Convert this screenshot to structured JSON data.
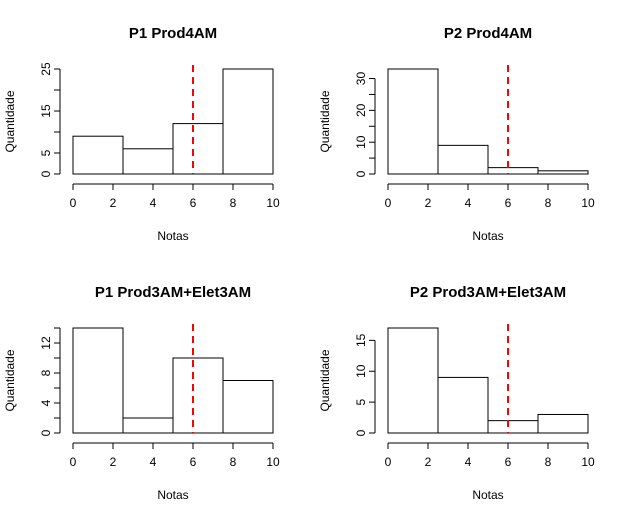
{
  "chart_data": [
    {
      "type": "bar",
      "title": "P1 Prod4AM",
      "xlabel": "Notas",
      "ylabel": "Quantidade",
      "bin_edges": [
        0,
        2.5,
        5,
        7.5,
        10
      ],
      "values": [
        9,
        6,
        12,
        25
      ],
      "xlim": [
        0,
        10
      ],
      "ylim": [
        0,
        25
      ],
      "xticks": [
        0,
        2,
        4,
        6,
        8,
        10
      ],
      "yticks": [
        0,
        5,
        15,
        25
      ],
      "yticks_minor": [
        10,
        20
      ],
      "cutoff_x": 6,
      "cutoff_color": "#ff0000"
    },
    {
      "type": "bar",
      "title": "P2 Prod4AM",
      "xlabel": "Notas",
      "ylabel": "Quantidade",
      "bin_edges": [
        0,
        2.5,
        5,
        7.5,
        10
      ],
      "values": [
        33,
        9,
        2,
        1
      ],
      "xlim": [
        0,
        10
      ],
      "ylim": [
        0,
        33
      ],
      "xticks": [
        0,
        2,
        4,
        6,
        8,
        10
      ],
      "yticks": [
        0,
        10,
        20,
        30
      ],
      "yticks_minor": [
        5,
        15,
        25
      ],
      "cutoff_x": 6,
      "cutoff_color": "#ff0000"
    },
    {
      "type": "bar",
      "title": "P1 Prod3AM+Elet3AM",
      "xlabel": "Notas",
      "ylabel": "Quantidade",
      "bin_edges": [
        0,
        2.5,
        5,
        7.5,
        10
      ],
      "values": [
        14,
        2,
        10,
        7
      ],
      "xlim": [
        0,
        10
      ],
      "ylim": [
        0,
        14
      ],
      "xticks": [
        0,
        2,
        4,
        6,
        8,
        10
      ],
      "yticks": [
        0,
        4,
        8,
        12
      ],
      "yticks_minor": [
        2,
        6,
        10,
        14
      ],
      "cutoff_x": 6,
      "cutoff_color": "#ff0000"
    },
    {
      "type": "bar",
      "title": "P2 Prod3AM+Elet3AM",
      "xlabel": "Notas",
      "ylabel": "Quantidade",
      "bin_edges": [
        0,
        2.5,
        5,
        7.5,
        10
      ],
      "values": [
        17,
        9,
        2,
        3
      ],
      "xlim": [
        0,
        10
      ],
      "ylim": [
        0,
        17
      ],
      "xticks": [
        0,
        2,
        4,
        6,
        8,
        10
      ],
      "yticks": [
        0,
        5,
        10,
        15
      ],
      "yticks_minor": [],
      "cutoff_x": 6,
      "cutoff_color": "#ff0000"
    }
  ]
}
